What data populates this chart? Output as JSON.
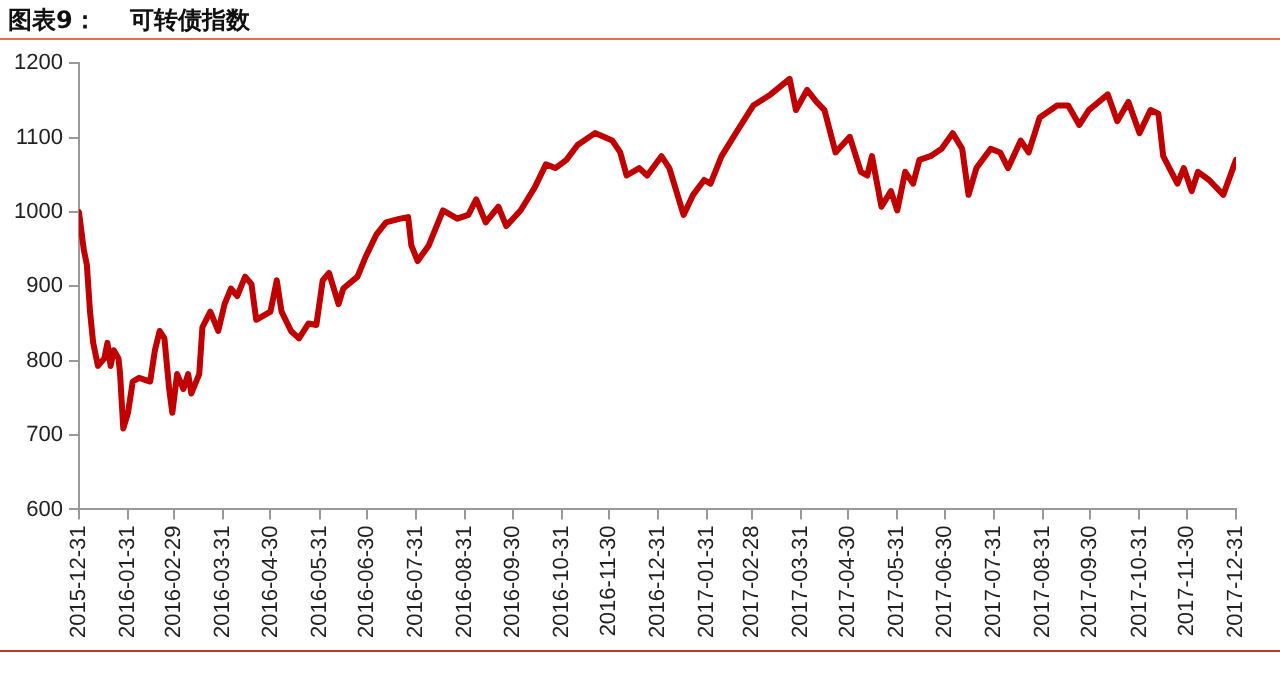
{
  "chart_data": {
    "type": "line",
    "title": "图表9：    可转债指数",
    "series": [
      {
        "color": "#c00000",
        "x": [
          "2015-12-31",
          "2016-01-03",
          "2016-01-05",
          "2016-01-07",
          "2016-01-09",
          "2016-01-12",
          "2016-01-16",
          "2016-01-18",
          "2016-01-20",
          "2016-01-22",
          "2016-01-25",
          "2016-01-26",
          "2016-01-28",
          "2016-01-31",
          "2016-02-03",
          "2016-02-07",
          "2016-02-14",
          "2016-02-17",
          "2016-02-20",
          "2016-02-23",
          "2016-02-26",
          "2016-02-28",
          "2016-03-02",
          "2016-03-06",
          "2016-03-09",
          "2016-03-11",
          "2016-03-16",
          "2016-03-18",
          "2016-03-23",
          "2016-03-28",
          "2016-04-01",
          "2016-04-05",
          "2016-04-09",
          "2016-04-14",
          "2016-04-18",
          "2016-04-21",
          "2016-04-30",
          "2016-05-04",
          "2016-05-07",
          "2016-05-13",
          "2016-05-18",
          "2016-05-24",
          "2016-05-29",
          "2016-06-02",
          "2016-06-06",
          "2016-06-12",
          "2016-06-15",
          "2016-06-24",
          "2016-06-29",
          "2016-07-06",
          "2016-07-12",
          "2016-07-21",
          "2016-07-26",
          "2016-07-28",
          "2016-08-01",
          "2016-08-08",
          "2016-08-17",
          "2016-08-26",
          "2016-09-02",
          "2016-09-07",
          "2016-09-13",
          "2016-09-21",
          "2016-09-26",
          "2016-10-05",
          "2016-10-14",
          "2016-10-21",
          "2016-10-27",
          "2016-11-03",
          "2016-11-10",
          "2016-11-21",
          "2016-12-02",
          "2016-12-07",
          "2016-12-11",
          "2016-12-19",
          "2016-12-24",
          "2017-01-02",
          "2017-01-07",
          "2017-01-16",
          "2017-01-22",
          "2017-01-29",
          "2017-02-02",
          "2017-02-09",
          "2017-02-18",
          "2017-03-01",
          "2017-03-12",
          "2017-03-24",
          "2017-03-28",
          "2017-04-04",
          "2017-04-10",
          "2017-04-15",
          "2017-04-22",
          "2017-05-01",
          "2017-05-08",
          "2017-05-12",
          "2017-05-15",
          "2017-05-21",
          "2017-05-27",
          "2017-05-31",
          "2017-06-05",
          "2017-06-10",
          "2017-06-14",
          "2017-06-21",
          "2017-06-28",
          "2017-07-05",
          "2017-07-11",
          "2017-07-15",
          "2017-07-20",
          "2017-07-29",
          "2017-08-04",
          "2017-08-09",
          "2017-08-17",
          "2017-08-22",
          "2017-08-29",
          "2017-09-09",
          "2017-09-16",
          "2017-09-23",
          "2017-09-29",
          "2017-10-11",
          "2017-10-17",
          "2017-10-24",
          "2017-10-31",
          "2017-11-07",
          "2017-11-12",
          "2017-11-15",
          "2017-11-24",
          "2017-11-28",
          "2017-12-03",
          "2017-12-07",
          "2017-12-14",
          "2017-12-23",
          "2017-12-31"
        ],
        "values": [
          1000,
          950,
          929,
          866,
          824,
          793,
          803,
          824,
          793,
          814,
          803,
          782,
          709,
          730,
          772,
          777,
          772,
          814,
          840,
          830,
          762,
          730,
          782,
          762,
          782,
          756,
          782,
          845,
          866,
          840,
          876,
          897,
          887,
          913,
          903,
          855,
          866,
          908,
          866,
          840,
          830,
          850,
          848,
          908,
          918,
          876,
          897,
          913,
          939,
          970,
          986,
          991,
          993,
          955,
          934,
          955,
          1002,
          991,
          996,
          1017,
          986,
          1007,
          981,
          1002,
          1033,
          1064,
          1059,
          1070,
          1090,
          1106,
          1096,
          1080,
          1049,
          1059,
          1049,
          1075,
          1059,
          996,
          1023,
          1043,
          1038,
          1075,
          1106,
          1143,
          1158,
          1179,
          1137,
          1164,
          1148,
          1137,
          1080,
          1101,
          1054,
          1049,
          1075,
          1007,
          1028,
          1002,
          1054,
          1038,
          1070,
          1075,
          1085,
          1106,
          1085,
          1023,
          1059,
          1085,
          1080,
          1059,
          1096,
          1080,
          1127,
          1143,
          1143,
          1117,
          1137,
          1158,
          1122,
          1148,
          1106,
          1137,
          1132,
          1075,
          1038,
          1059,
          1028,
          1054,
          1043,
          1023,
          1070
        ]
      }
    ],
    "xlim": [
      "2015-12-31",
      "2017-12-31"
    ],
    "xticks": [
      {
        "value": "2015-12-31",
        "label": "2015-12-31"
      },
      {
        "value": "2016-01-31",
        "label": "2016-01-31"
      },
      {
        "value": "2016-02-29",
        "label": "2016-02-29"
      },
      {
        "value": "2016-03-31",
        "label": "2016-03-31"
      },
      {
        "value": "2016-04-30",
        "label": "2016-04-30"
      },
      {
        "value": "2016-05-31",
        "label": "2016-05-31"
      },
      {
        "value": "2016-06-30",
        "label": "2016-06-30"
      },
      {
        "value": "2016-07-31",
        "label": "2016-07-31"
      },
      {
        "value": "2016-08-31",
        "label": "2016-08-31"
      },
      {
        "value": "2016-09-30",
        "label": "2016-09-30"
      },
      {
        "value": "2016-10-31",
        "label": "2016-10-31"
      },
      {
        "value": "2016-11-30",
        "label": "2016-11-30"
      },
      {
        "value": "2016-12-31",
        "label": "2016-12-31"
      },
      {
        "value": "2017-01-31",
        "label": "2017-01-31"
      },
      {
        "value": "2017-02-28",
        "label": "2017-02-28"
      },
      {
        "value": "2017-03-31",
        "label": "2017-03-31"
      },
      {
        "value": "2017-04-30",
        "label": "2017-04-30"
      },
      {
        "value": "2017-05-31",
        "label": "2017-05-31"
      },
      {
        "value": "2017-06-30",
        "label": "2017-06-30"
      },
      {
        "value": "2017-07-31",
        "label": "2017-07-31"
      },
      {
        "value": "2017-08-31",
        "label": "2017-08-31"
      },
      {
        "value": "2017-09-30",
        "label": "2017-09-30"
      },
      {
        "value": "2017-10-31",
        "label": "2017-10-31"
      },
      {
        "value": "2017-11-30",
        "label": "2017-11-30"
      },
      {
        "value": "2017-12-31",
        "label": "2017-12-31"
      }
    ],
    "ylim": [
      600,
      1200
    ],
    "yticks": [
      600,
      700,
      800,
      900,
      1000,
      1100,
      1200
    ],
    "grid": false,
    "legend": false,
    "marker": "none",
    "line_style": "solid"
  }
}
